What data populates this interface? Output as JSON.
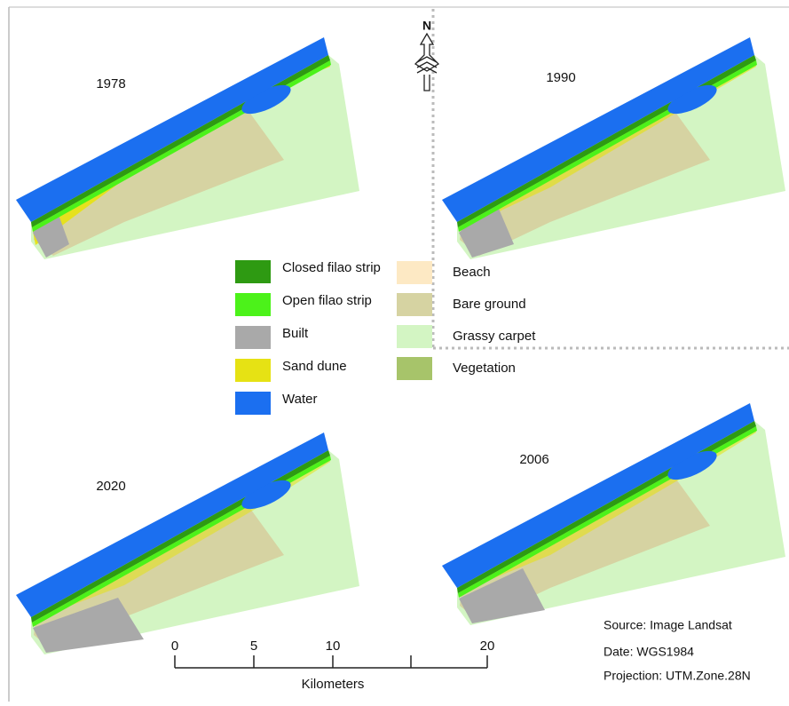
{
  "north": "N",
  "panels": [
    {
      "year": "1978"
    },
    {
      "year": "1990"
    },
    {
      "year": "2020"
    },
    {
      "year": "2006"
    }
  ],
  "legend": [
    {
      "name": "Closed filao strip",
      "color": "#2e9a12"
    },
    {
      "name": "Open filao strip",
      "color": "#4cf21a"
    },
    {
      "name": "Built",
      "color": "#a9a9a9"
    },
    {
      "name": "Sand dune",
      "color": "#e6e214"
    },
    {
      "name": "Water",
      "color": "#1b6ff0"
    },
    {
      "name": "Beach",
      "color": "#fde9c4"
    },
    {
      "name": "Bare ground",
      "color": "#d6d3a2"
    },
    {
      "name": "Grassy carpet",
      "color": "#d3f5c3"
    },
    {
      "name": "Vegetation",
      "color": "#a7c46a"
    }
  ],
  "scale_bar": {
    "labels": [
      "0",
      "5",
      "10",
      "20"
    ],
    "unit": "Kilometers"
  },
  "source": [
    "Source: Image Landsat",
    "Date: WGS1984",
    "Projection: UTM.Zone.28N"
  ]
}
